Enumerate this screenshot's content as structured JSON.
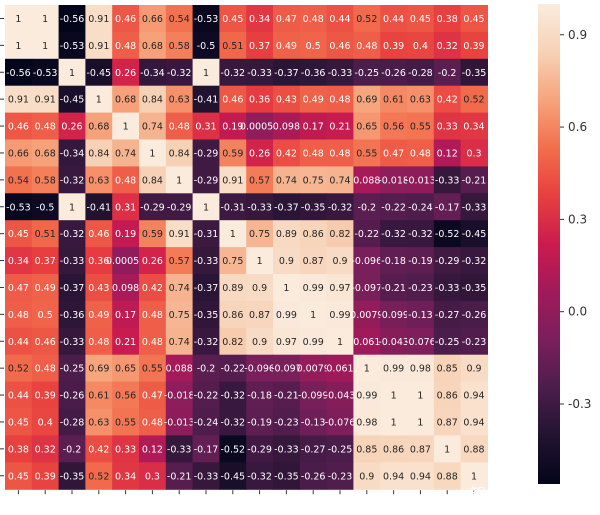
{
  "chart_data": {
    "type": "heatmap",
    "title": "",
    "xlabel": "",
    "ylabel": "",
    "row_labels": [
      "",
      "",
      "",
      "",
      "",
      "",
      "",
      "",
      "",
      "",
      "",
      "",
      "",
      "",
      "",
      "",
      "",
      ""
    ],
    "col_labels": [
      "",
      "",
      "",
      "",
      "",
      "",
      "",
      "",
      "",
      "",
      "",
      "",
      "",
      "",
      "",
      "",
      "",
      ""
    ],
    "cells": [
      [
        "1",
        "1",
        "-0.56",
        "0.91",
        "0.46",
        "0.66",
        "0.54",
        "-0.53",
        "0.45",
        "0.34",
        "0.47",
        "0.48",
        "0.44",
        "0.52",
        "0.44",
        "0.45",
        "0.38",
        "0.45"
      ],
      [
        "1",
        "1",
        "-0.53",
        "0.91",
        "0.48",
        "0.68",
        "0.58",
        "-0.5",
        "0.51",
        "0.37",
        "0.49",
        "0.5",
        "0.46",
        "0.48",
        "0.39",
        "0.4",
        "0.32",
        "0.39"
      ],
      [
        "-0.56",
        "-0.53",
        "1",
        "-0.45",
        "0.26",
        "-0.34",
        "-0.32",
        "1",
        "-0.32",
        "-0.33",
        "-0.37",
        "-0.36",
        "-0.33",
        "-0.25",
        "-0.26",
        "-0.28",
        "-0.2",
        "-0.35"
      ],
      [
        "0.91",
        "0.91",
        "-0.45",
        "1",
        "0.68",
        "0.84",
        "0.63",
        "-0.41",
        "0.46",
        "0.36",
        "0.43",
        "0.49",
        "0.48",
        "0.69",
        "0.61",
        "0.63",
        "0.42",
        "0.52"
      ],
      [
        "0.46",
        "0.48",
        "0.26",
        "0.68",
        "1",
        "0.74",
        "0.48",
        "0.31",
        "0.19",
        "0.00055",
        "0.098",
        "0.17",
        "0.21",
        "0.65",
        "0.56",
        "0.55",
        "0.33",
        "0.34"
      ],
      [
        "0.66",
        "0.68",
        "-0.34",
        "0.84",
        "0.74",
        "1",
        "0.84",
        "-0.29",
        "0.59",
        "0.26",
        "0.42",
        "0.48",
        "0.48",
        "0.55",
        "0.47",
        "0.48",
        "0.12",
        "0.3"
      ],
      [
        "0.54",
        "0.58",
        "-0.32",
        "0.63",
        "0.48",
        "0.84",
        "1",
        "-0.29",
        "0.91",
        "0.57",
        "0.74",
        "0.75",
        "0.74",
        "0.088",
        "-0.018",
        "-0.013",
        "-0.33",
        "-0.21"
      ],
      [
        "-0.53",
        "-0.5",
        "1",
        "-0.41",
        "0.31",
        "-0.29",
        "-0.29",
        "1",
        "-0.31",
        "-0.33",
        "-0.37",
        "-0.35",
        "-0.32",
        "-0.2",
        "-0.22",
        "-0.24",
        "-0.17",
        "-0.33"
      ],
      [
        "0.45",
        "0.51",
        "-0.32",
        "0.46",
        "0.19",
        "0.59",
        "0.91",
        "-0.31",
        "1",
        "0.75",
        "0.89",
        "0.86",
        "0.82",
        "-0.22",
        "-0.32",
        "-0.32",
        "-0.52",
        "-0.45"
      ],
      [
        "0.34",
        "0.37",
        "-0.33",
        "0.36",
        "0.00055",
        "0.26",
        "0.57",
        "-0.33",
        "0.75",
        "1",
        "0.9",
        "0.87",
        "0.9",
        "-0.096",
        "-0.18",
        "-0.19",
        "-0.29",
        "-0.32"
      ],
      [
        "0.47",
        "0.49",
        "-0.37",
        "0.43",
        "0.098",
        "0.42",
        "0.74",
        "-0.37",
        "0.89",
        "0.9",
        "1",
        "0.99",
        "0.97",
        "-0.097",
        "-0.21",
        "-0.23",
        "-0.33",
        "-0.35"
      ],
      [
        "0.48",
        "0.5",
        "-0.36",
        "0.49",
        "0.17",
        "0.48",
        "0.75",
        "-0.35",
        "0.86",
        "0.87",
        "0.99",
        "1",
        "0.99",
        "0.0079",
        "-0.099",
        "-0.13",
        "-0.27",
        "-0.26"
      ],
      [
        "0.44",
        "0.46",
        "-0.33",
        "0.48",
        "0.21",
        "0.48",
        "0.74",
        "-0.32",
        "0.82",
        "0.9",
        "0.97",
        "0.99",
        "1",
        "0.061",
        "-0.043",
        "-0.076",
        "-0.25",
        "-0.23"
      ],
      [
        "0.52",
        "0.48",
        "-0.25",
        "0.69",
        "0.65",
        "0.55",
        "0.088",
        "-0.2",
        "-0.22",
        "-0.096",
        "-0.097",
        "0.0079",
        "0.061",
        "1",
        "0.99",
        "0.98",
        "0.85",
        "0.9"
      ],
      [
        "0.44",
        "0.39",
        "-0.26",
        "0.61",
        "0.56",
        "0.47",
        "-0.018",
        "-0.22",
        "-0.32",
        "-0.18",
        "-0.21",
        "-0.099",
        "-0.043",
        "0.99",
        "1",
        "1",
        "0.86",
        "0.94"
      ],
      [
        "0.45",
        "0.4",
        "-0.28",
        "0.63",
        "0.55",
        "0.48",
        "-0.013",
        "-0.24",
        "-0.32",
        "-0.19",
        "-0.23",
        "-0.13",
        "-0.076",
        "0.98",
        "1",
        "1",
        "0.87",
        "0.94"
      ],
      [
        "0.38",
        "0.32",
        "-0.2",
        "0.42",
        "0.33",
        "0.12",
        "-0.33",
        "-0.17",
        "-0.52",
        "-0.29",
        "-0.33",
        "-0.27",
        "-0.25",
        "0.85",
        "0.86",
        "0.87",
        "1",
        "0.88"
      ],
      [
        "0.45",
        "0.39",
        "-0.35",
        "0.52",
        "0.34",
        "0.3",
        "-0.21",
        "-0.33",
        "-0.45",
        "-0.32",
        "-0.35",
        "-0.26",
        "-0.23",
        "0.9",
        "0.94",
        "0.94",
        "0.88",
        "1"
      ]
    ],
    "vmin": -0.56,
    "vmax": 1.0,
    "colorbar_ticks": [
      {
        "value": 0.9,
        "label": "0.9"
      },
      {
        "value": 0.6,
        "label": "0.6"
      },
      {
        "value": 0.3,
        "label": "0.3"
      },
      {
        "value": 0.0,
        "label": "0.0"
      },
      {
        "value": -0.3,
        "label": "-0.3"
      }
    ],
    "colormap": "rocket",
    "colormap_stops": [
      "#03051a",
      "#221331",
      "#4c1d4b",
      "#7a1f5b",
      "#a11a5b",
      "#cb1b4f",
      "#e83f3f",
      "#f26e4c",
      "#f6a47c",
      "#f7d2b6",
      "#faebdd"
    ],
    "grid": false,
    "legend": "colorbar-right"
  },
  "watermark": "知乎 @校园兔"
}
